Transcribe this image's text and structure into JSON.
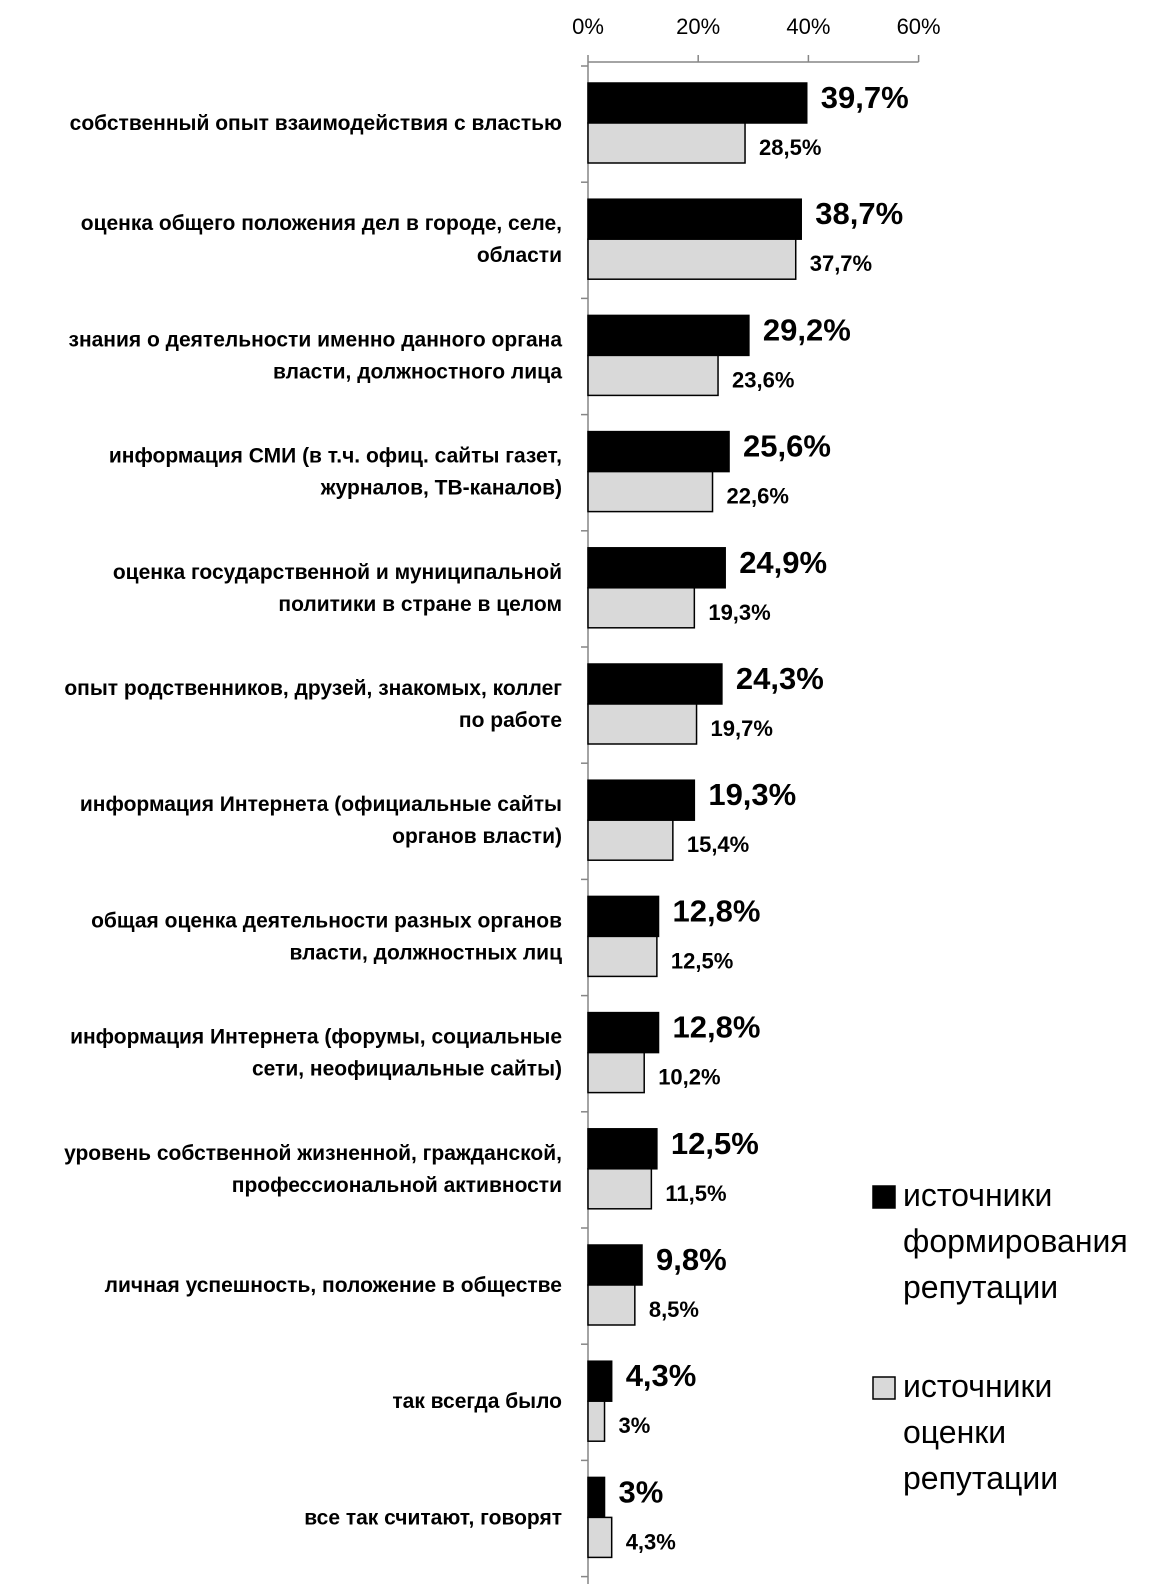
{
  "chart_data": {
    "type": "bar",
    "orientation": "horizontal",
    "title": "",
    "xlabel": "",
    "ylabel": "",
    "xlim": [
      0,
      60
    ],
    "x_ticks": [
      "0%",
      "20%",
      "40%",
      "60%"
    ],
    "tick_values": [
      0,
      20,
      40,
      60
    ],
    "grid": false,
    "legend_position": "right",
    "categories": [
      [
        "собственный опыт взаимодействия с властью"
      ],
      [
        "оценка общего положения дел в городе, селе,",
        "области"
      ],
      [
        "знания о деятельности именно данного органа",
        "власти, должностного лица"
      ],
      [
        "информация СМИ (в т.ч. офиц. сайты газет,",
        "журналов, ТВ-каналов)"
      ],
      [
        "оценка государственной и муниципальной",
        "политики в стране в целом"
      ],
      [
        "опыт родственников, друзей, знакомых, коллег",
        "по работе"
      ],
      [
        "информация Интернета (официальные сайты",
        "органов власти)"
      ],
      [
        "общая оценка деятельности разных органов",
        "власти, должностных лиц"
      ],
      [
        "информация Интернета (форумы, социальные",
        "сети, неофициальные сайты)"
      ],
      [
        "уровень собственной жизненной, гражданской,",
        "профессиональной активности"
      ],
      [
        "личная успешность, положение в обществе"
      ],
      [
        "так всегда было"
      ],
      [
        "все так считают, говорят"
      ]
    ],
    "series": [
      {
        "name": "источники формирования репутации",
        "legend_lines": [
          "источники",
          "формирования",
          "репутации"
        ],
        "color": "#000000",
        "values": [
          39.7,
          38.7,
          29.2,
          25.6,
          24.9,
          24.3,
          19.3,
          12.8,
          12.8,
          12.5,
          9.8,
          4.3,
          3
        ],
        "labels": [
          "39,7%",
          "38,7%",
          "29,2%",
          "25,6%",
          "24,9%",
          "24,3%",
          "19,3%",
          "12,8%",
          "12,8%",
          "12,5%",
          "9,8%",
          "4,3%",
          "3%"
        ]
      },
      {
        "name": "источники оценки репутации",
        "legend_lines": [
          "источники",
          "оценки",
          "репутации"
        ],
        "color": "#d9d9d9",
        "values": [
          28.5,
          37.7,
          23.6,
          22.6,
          19.3,
          19.7,
          15.4,
          12.5,
          10.2,
          11.5,
          8.5,
          3,
          4.3
        ],
        "labels": [
          "28,5%",
          "37,7%",
          "23,6%",
          "22,6%",
          "19,3%",
          "19,7%",
          "15,4%",
          "12,5%",
          "10,2%",
          "11,5%",
          "8,5%",
          "3%",
          "4,3%"
        ]
      }
    ]
  }
}
